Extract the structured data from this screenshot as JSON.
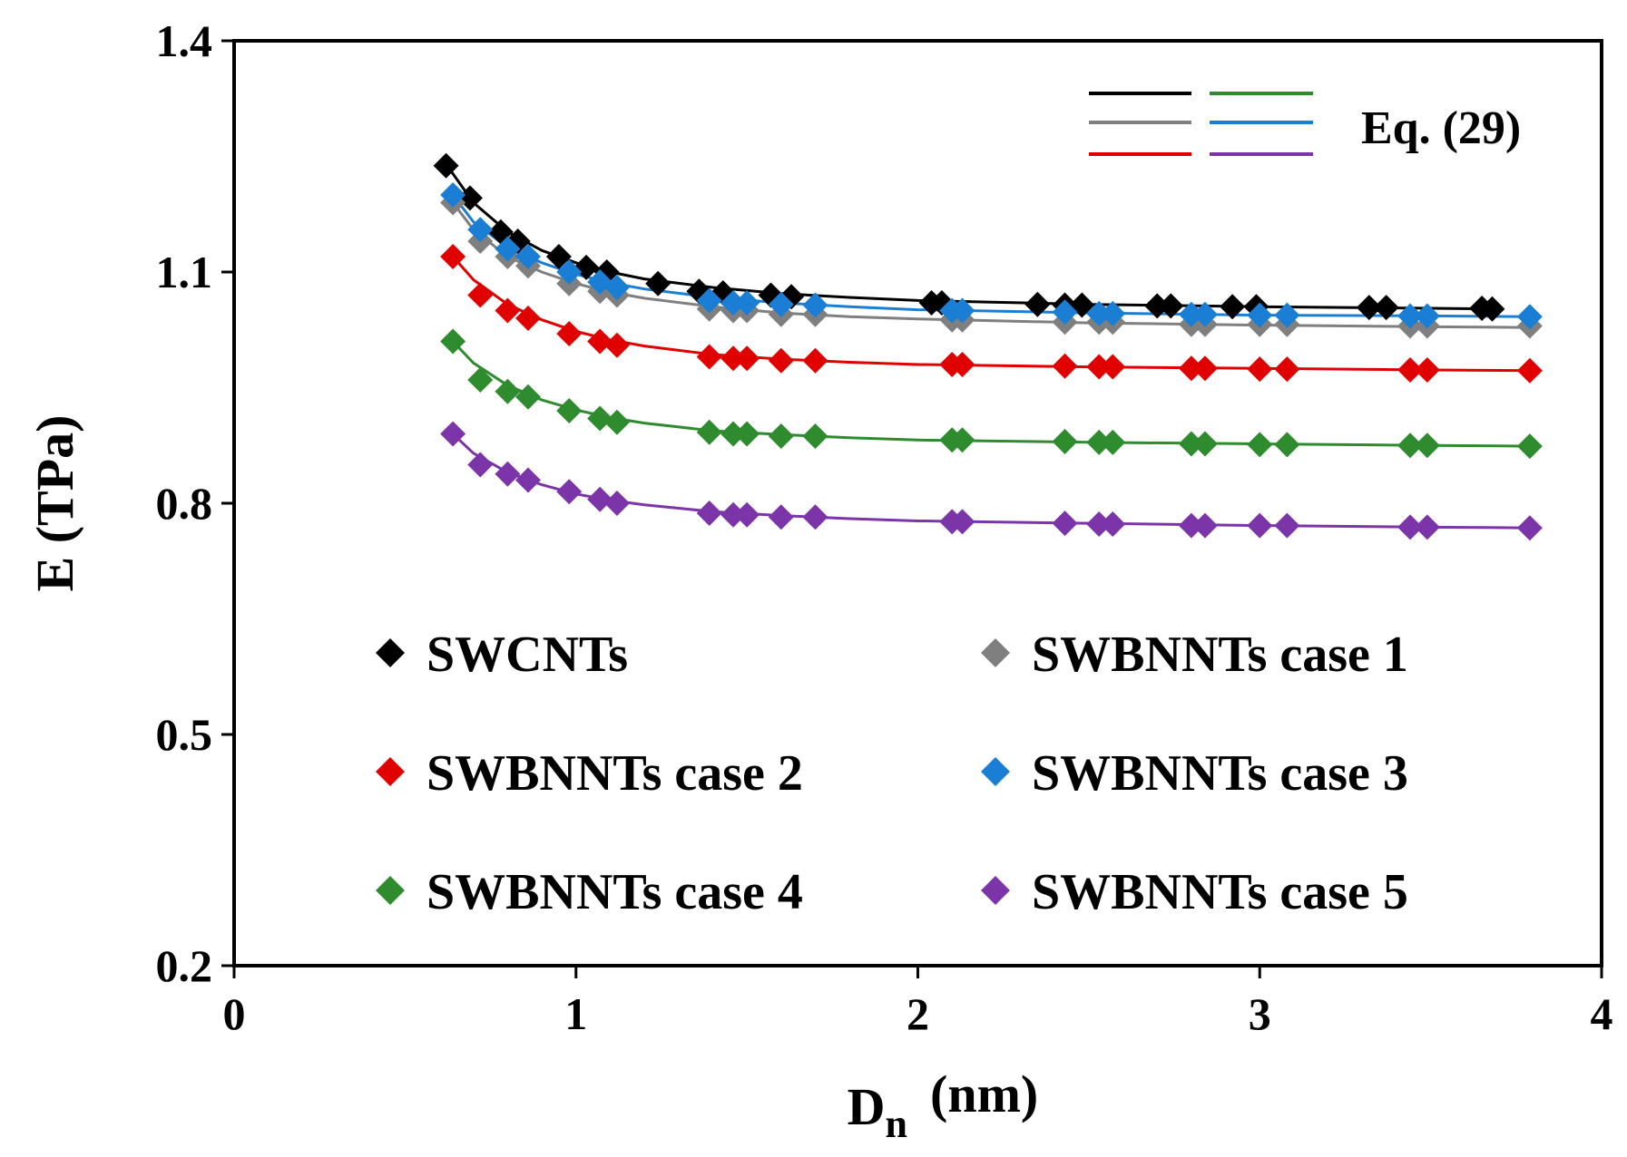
{
  "chart_data": {
    "type": "scatter",
    "xlabel": "D",
    "xlabel_subscript": "n",
    "xlabel_unit": "(nm)",
    "ylabel": "E (TPa)",
    "xlim": [
      0,
      4
    ],
    "ylim": [
      0.2,
      1.4
    ],
    "x_ticks": [
      "0",
      "1",
      "2",
      "3",
      "4"
    ],
    "y_ticks": [
      "0.2",
      "0.5",
      "0.8",
      "1.1",
      "1.4"
    ],
    "equation_label": "Eq. (29)",
    "fit_line_colors": [
      "#000000",
      "#7f7f7f",
      "#e00000",
      "#2e8b2e",
      "#1a7fd4",
      "#7b35a8"
    ],
    "series": [
      {
        "name": "SWCNTs",
        "color": "#000000",
        "x": [
          0.62,
          0.69,
          0.78,
          0.83,
          0.95,
          1.03,
          1.09,
          1.24,
          1.36,
          1.43,
          1.57,
          1.63,
          2.04,
          2.07,
          2.35,
          2.43,
          2.48,
          2.7,
          2.74,
          2.92,
          2.99,
          3.32,
          3.37,
          3.65,
          3.68
        ],
        "values": [
          1.238,
          1.196,
          1.152,
          1.14,
          1.12,
          1.106,
          1.1,
          1.085,
          1.075,
          1.073,
          1.07,
          1.068,
          1.06,
          1.06,
          1.058,
          1.057,
          1.057,
          1.056,
          1.056,
          1.055,
          1.055,
          1.054,
          1.054,
          1.053,
          1.052
        ],
        "fit_x": [
          0.62,
          0.7,
          0.8,
          0.9,
          1.0,
          1.1,
          1.2,
          1.4,
          1.6,
          1.8,
          2.0,
          2.5,
          3.0,
          3.5,
          3.7
        ],
        "fit_y": [
          1.24,
          1.19,
          1.152,
          1.128,
          1.112,
          1.1,
          1.091,
          1.08,
          1.072,
          1.067,
          1.063,
          1.058,
          1.055,
          1.053,
          1.052
        ]
      },
      {
        "name": "SWBNNTs case 1",
        "color": "#7f7f7f",
        "x": [
          0.64,
          0.72,
          0.8,
          0.86,
          0.98,
          1.07,
          1.12,
          1.39,
          1.46,
          1.5,
          1.6,
          1.7,
          2.1,
          2.13,
          2.43,
          2.53,
          2.57,
          2.8,
          2.84,
          3.0,
          3.08,
          3.44,
          3.49,
          3.79
        ],
        "values": [
          1.19,
          1.14,
          1.12,
          1.108,
          1.085,
          1.075,
          1.07,
          1.052,
          1.05,
          1.05,
          1.045,
          1.045,
          1.038,
          1.038,
          1.035,
          1.035,
          1.035,
          1.032,
          1.032,
          1.032,
          1.032,
          1.03,
          1.03,
          1.03
        ],
        "fit_x": [
          0.64,
          0.7,
          0.8,
          0.9,
          1.0,
          1.1,
          1.2,
          1.4,
          1.6,
          1.8,
          2.0,
          2.5,
          3.0,
          3.5,
          3.8
        ],
        "fit_y": [
          1.19,
          1.155,
          1.12,
          1.1,
          1.085,
          1.074,
          1.066,
          1.055,
          1.047,
          1.042,
          1.039,
          1.034,
          1.031,
          1.029,
          1.028
        ]
      },
      {
        "name": "SWBNNTs case 2",
        "color": "#e00000",
        "x": [
          0.64,
          0.72,
          0.8,
          0.86,
          0.98,
          1.07,
          1.12,
          1.39,
          1.46,
          1.5,
          1.6,
          1.7,
          2.1,
          2.13,
          2.43,
          2.53,
          2.57,
          2.8,
          2.84,
          3.0,
          3.08,
          3.44,
          3.49,
          3.79
        ],
        "values": [
          1.12,
          1.07,
          1.05,
          1.04,
          1.02,
          1.01,
          1.005,
          0.99,
          0.988,
          0.988,
          0.985,
          0.985,
          0.98,
          0.98,
          0.978,
          0.977,
          0.977,
          0.975,
          0.975,
          0.974,
          0.974,
          0.973,
          0.973,
          0.972
        ],
        "fit_x": [
          0.64,
          0.7,
          0.8,
          0.9,
          1.0,
          1.1,
          1.2,
          1.4,
          1.6,
          1.8,
          2.0,
          2.5,
          3.0,
          3.5,
          3.8
        ],
        "fit_y": [
          1.12,
          1.09,
          1.058,
          1.038,
          1.023,
          1.012,
          1.004,
          0.993,
          0.987,
          0.983,
          0.98,
          0.977,
          0.975,
          0.973,
          0.972
        ]
      },
      {
        "name": "SWBNNTs case 3",
        "color": "#1a7fd4",
        "x": [
          0.64,
          0.72,
          0.8,
          0.86,
          0.98,
          1.07,
          1.12,
          1.39,
          1.46,
          1.5,
          1.6,
          1.7,
          2.1,
          2.13,
          2.43,
          2.53,
          2.57,
          2.8,
          2.84,
          3.0,
          3.08,
          3.44,
          3.49,
          3.79
        ],
        "values": [
          1.2,
          1.155,
          1.13,
          1.12,
          1.1,
          1.087,
          1.08,
          1.063,
          1.06,
          1.06,
          1.058,
          1.057,
          1.05,
          1.05,
          1.048,
          1.046,
          1.046,
          1.045,
          1.045,
          1.044,
          1.044,
          1.043,
          1.043,
          1.042
        ],
        "fit_x": [
          0.64,
          0.7,
          0.8,
          0.9,
          1.0,
          1.1,
          1.2,
          1.4,
          1.6,
          1.8,
          2.0,
          2.5,
          3.0,
          3.5,
          3.8
        ],
        "fit_y": [
          1.2,
          1.165,
          1.132,
          1.112,
          1.097,
          1.086,
          1.078,
          1.067,
          1.06,
          1.055,
          1.051,
          1.047,
          1.044,
          1.043,
          1.042
        ]
      },
      {
        "name": "SWBNNTs case 4",
        "color": "#2e8b2e",
        "x": [
          0.64,
          0.72,
          0.8,
          0.86,
          0.98,
          1.07,
          1.12,
          1.39,
          1.46,
          1.5,
          1.6,
          1.7,
          2.1,
          2.13,
          2.43,
          2.53,
          2.57,
          2.8,
          2.84,
          3.0,
          3.08,
          3.44,
          3.49,
          3.79
        ],
        "values": [
          1.01,
          0.96,
          0.945,
          0.938,
          0.92,
          0.91,
          0.905,
          0.892,
          0.89,
          0.89,
          0.887,
          0.887,
          0.882,
          0.882,
          0.88,
          0.879,
          0.879,
          0.877,
          0.877,
          0.876,
          0.876,
          0.875,
          0.875,
          0.874
        ],
        "fit_x": [
          0.64,
          0.7,
          0.8,
          0.9,
          1.0,
          1.1,
          1.2,
          1.4,
          1.6,
          1.8,
          2.0,
          2.5,
          3.0,
          3.5,
          3.8
        ],
        "fit_y": [
          1.01,
          0.982,
          0.953,
          0.934,
          0.921,
          0.911,
          0.904,
          0.894,
          0.889,
          0.885,
          0.882,
          0.879,
          0.877,
          0.875,
          0.874
        ]
      },
      {
        "name": "SWBNNTs case 5",
        "color": "#7b35a8",
        "x": [
          0.64,
          0.72,
          0.8,
          0.86,
          0.98,
          1.07,
          1.12,
          1.39,
          1.46,
          1.5,
          1.6,
          1.7,
          2.1,
          2.13,
          2.43,
          2.53,
          2.57,
          2.8,
          2.84,
          3.0,
          3.08,
          3.44,
          3.49,
          3.79
        ],
        "values": [
          0.89,
          0.85,
          0.838,
          0.83,
          0.815,
          0.805,
          0.8,
          0.787,
          0.785,
          0.785,
          0.782,
          0.782,
          0.776,
          0.776,
          0.774,
          0.773,
          0.773,
          0.771,
          0.771,
          0.771,
          0.771,
          0.769,
          0.769,
          0.768
        ],
        "fit_x": [
          0.64,
          0.7,
          0.8,
          0.9,
          1.0,
          1.1,
          1.2,
          1.4,
          1.6,
          1.8,
          2.0,
          2.5,
          3.0,
          3.5,
          3.8
        ],
        "fit_y": [
          0.89,
          0.865,
          0.84,
          0.824,
          0.812,
          0.804,
          0.798,
          0.789,
          0.784,
          0.78,
          0.777,
          0.774,
          0.771,
          0.769,
          0.768
        ]
      }
    ],
    "legend_position": "bottom-center"
  }
}
